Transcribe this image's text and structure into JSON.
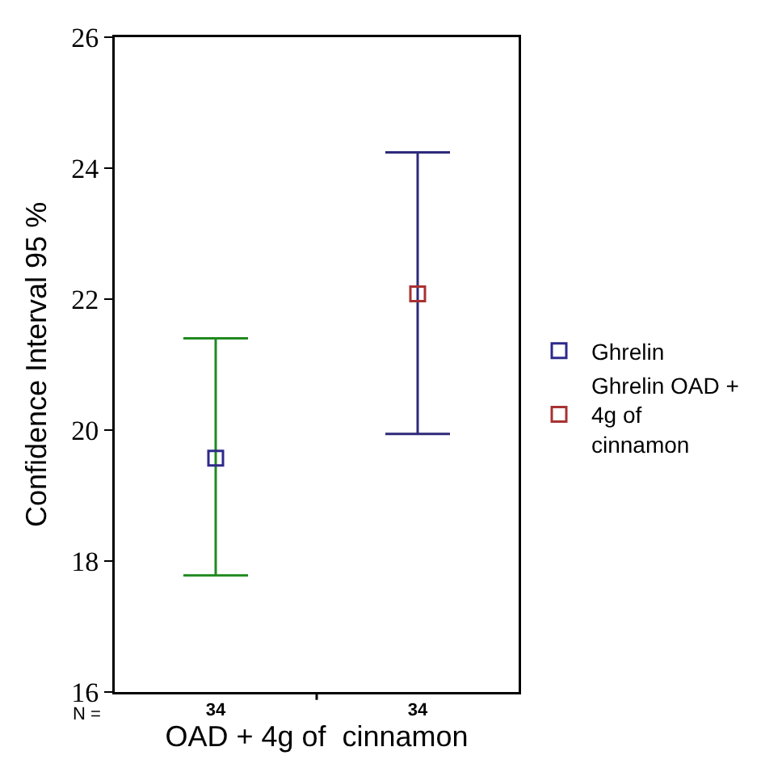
{
  "chart_data": {
    "type": "scatter",
    "xlabel": "OAD + 4g of  cinnamon",
    "ylabel": "Confidence Interval 95 %",
    "categories": [
      "34",
      "34"
    ],
    "annotations": [
      "N ="
    ],
    "ylim": [
      16,
      26
    ],
    "yticks": [
      16,
      18,
      20,
      22,
      24,
      26
    ],
    "grid": false,
    "legend": "right",
    "marker": "square",
    "series": [
      {
        "name": "Ghrelin",
        "color": "#1f8a1f",
        "colors": [
          "#2e2a8a",
          null
        ],
        "values": [
          19.57,
          null
        ],
        "errors": [
          [
            17.78,
            21.4
          ],
          null
        ]
      },
      {
        "name": "Ghrelin OAD + 4g of  cinnamon",
        "color": "#2e2a7a",
        "colors": [
          null,
          "#a83232"
        ],
        "values": [
          null,
          22.08
        ],
        "errors": [
          null,
          [
            19.94,
            24.24
          ]
        ]
      }
    ]
  }
}
